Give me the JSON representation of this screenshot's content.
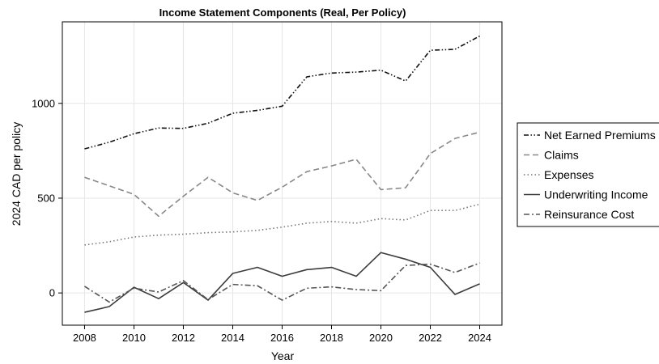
{
  "chart_data": {
    "type": "line",
    "title": "Income Statement Components (Real, Per Policy)",
    "xlabel": "Year",
    "ylabel": "2024 CAD per policy",
    "xlim": [
      2007.1,
      2024.9
    ],
    "ylim": [
      -170,
      1430
    ],
    "xticks": [
      2008,
      2010,
      2012,
      2014,
      2016,
      2018,
      2020,
      2022,
      2024
    ],
    "yticks": [
      0,
      500,
      1000
    ],
    "grid": true,
    "legend_position": "right",
    "x": [
      2008,
      2009,
      2010,
      2011,
      2012,
      2013,
      2014,
      2015,
      2016,
      2017,
      2018,
      2019,
      2020,
      2021,
      2022,
      2023,
      2024
    ],
    "series": [
      {
        "name": "Net Earned Premiums",
        "color": "#111111",
        "dash": "dashdotdot",
        "values": [
          760,
          795,
          840,
          870,
          868,
          895,
          948,
          963,
          985,
          1140,
          1160,
          1165,
          1175,
          1118,
          1280,
          1285,
          1355
        ]
      },
      {
        "name": "Claims",
        "color": "#888888",
        "dash": "dash",
        "values": [
          610,
          565,
          520,
          405,
          510,
          610,
          528,
          488,
          558,
          640,
          670,
          705,
          545,
          555,
          735,
          815,
          848
        ]
      },
      {
        "name": "Expenses",
        "color": "#777777",
        "dash": "dot",
        "values": [
          253,
          270,
          295,
          305,
          310,
          318,
          322,
          330,
          347,
          368,
          377,
          368,
          392,
          385,
          435,
          435,
          468
        ]
      },
      {
        "name": "Underwriting Income",
        "color": "#3c3c3c",
        "dash": "solid",
        "values": [
          -102,
          -72,
          30,
          -30,
          55,
          -38,
          103,
          135,
          88,
          123,
          135,
          88,
          213,
          178,
          135,
          -8,
          48
        ]
      },
      {
        "name": "Reinsurance Cost",
        "color": "#555555",
        "dash": "dashdot",
        "values": [
          35,
          -48,
          25,
          5,
          65,
          -35,
          45,
          38,
          -38,
          25,
          32,
          18,
          12,
          145,
          152,
          108,
          158
        ]
      }
    ]
  }
}
